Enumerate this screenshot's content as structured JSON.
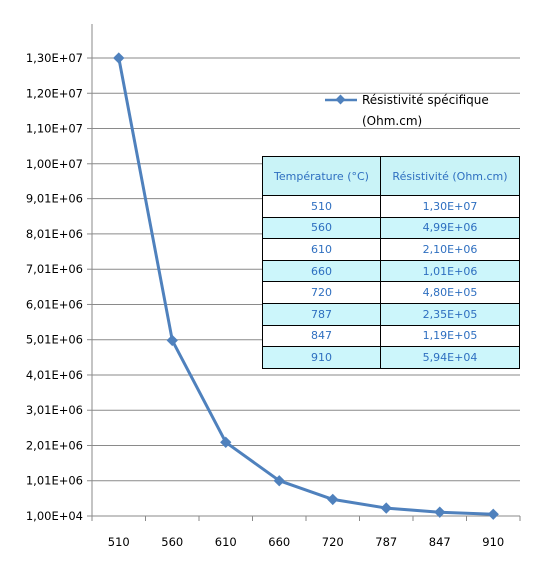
{
  "chart_data": {
    "type": "line",
    "categories": [
      "510",
      "560",
      "610",
      "660",
      "720",
      "787",
      "847",
      "910"
    ],
    "series": [
      {
        "name": "Résistivité spécifique (Ohm.cm)",
        "name_lines": [
          "Résistivité spécifique",
          "(Ohm.cm)"
        ],
        "values": [
          13000000,
          4990000,
          2100000,
          1010000,
          480000,
          235000,
          119000,
          59400
        ],
        "color": "#4f81bd"
      }
    ],
    "y_ticks": [
      {
        "value": 10000,
        "label": "1,00E+04"
      },
      {
        "value": 1010000,
        "label": "1,01E+06"
      },
      {
        "value": 2010000,
        "label": "2,01E+06"
      },
      {
        "value": 3010000,
        "label": "3,01E+06"
      },
      {
        "value": 4010000,
        "label": "4,01E+06"
      },
      {
        "value": 5010000,
        "label": "5,01E+06"
      },
      {
        "value": 6010000,
        "label": "6,01E+06"
      },
      {
        "value": 7010000,
        "label": "7,01E+06"
      },
      {
        "value": 8010000,
        "label": "8,01E+06"
      },
      {
        "value": 9010000,
        "label": "9,01E+06"
      },
      {
        "value": 10000000,
        "label": "1,00E+07"
      },
      {
        "value": 11000000,
        "label": "1,10E+07"
      },
      {
        "value": 12000000,
        "label": "1,20E+07"
      },
      {
        "value": 13000000,
        "label": "1,30E+07"
      }
    ],
    "ylim": [
      10000,
      13900000
    ],
    "grid": true,
    "legend": "top-right",
    "title": "",
    "xlabel": "",
    "ylabel": ""
  },
  "table": {
    "headers": [
      "Température (°C)",
      "Résistivité (Ohm.cm)"
    ],
    "rows": [
      [
        "510",
        "1,30E+07"
      ],
      [
        "560",
        "4,99E+06"
      ],
      [
        "610",
        "2,10E+06"
      ],
      [
        "660",
        "1,01E+06"
      ],
      [
        "720",
        "4,80E+05"
      ],
      [
        "787",
        "2,35E+05"
      ],
      [
        "847",
        "1,19E+05"
      ],
      [
        "910",
        "5,94E+04"
      ]
    ]
  }
}
